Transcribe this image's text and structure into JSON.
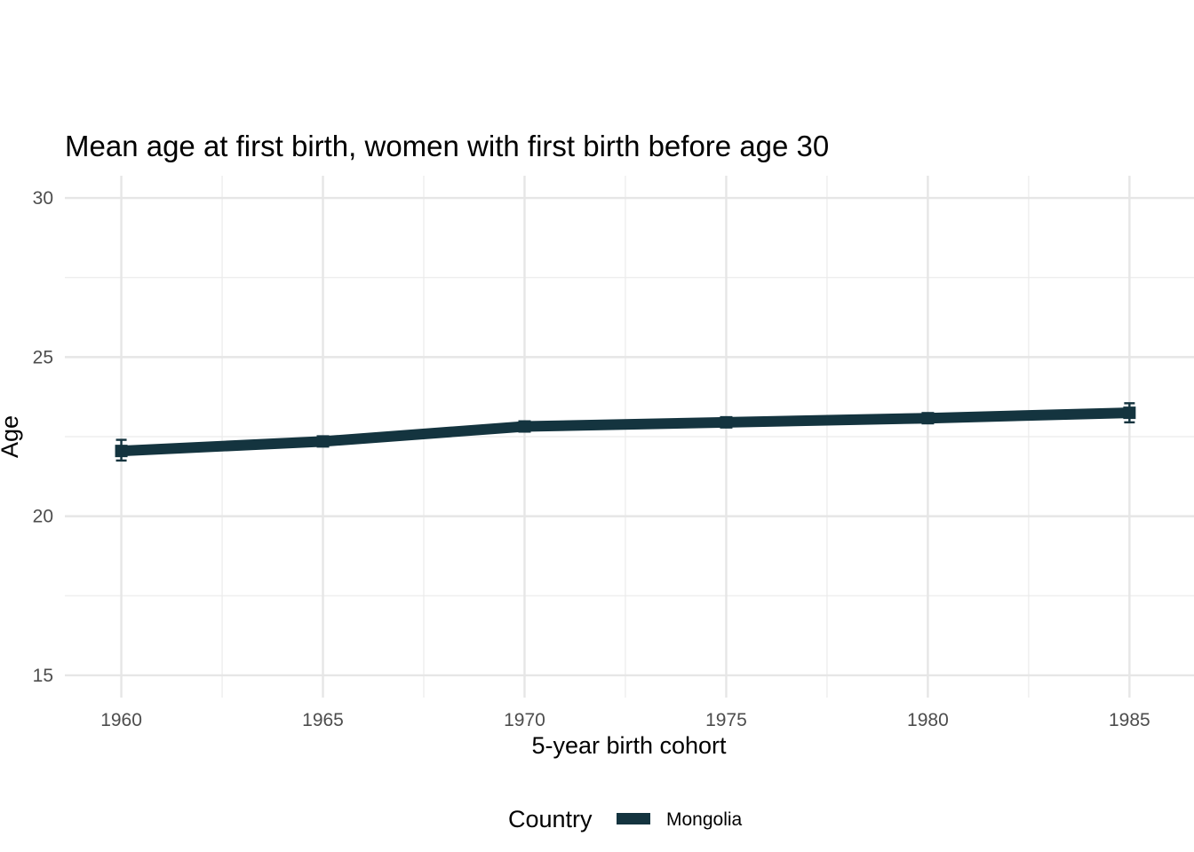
{
  "chart_data": {
    "type": "line",
    "title": "Mean age at first birth, women with first birth before age 30",
    "xlabel": "5-year birth cohort",
    "ylabel": "Age",
    "x": [
      1960,
      1965,
      1970,
      1975,
      1980,
      1985
    ],
    "x_tick_labels": [
      "1960",
      "1965",
      "1970",
      "1975",
      "1980",
      "1985"
    ],
    "y_ticks": [
      15,
      20,
      25,
      30
    ],
    "y_tick_labels": [
      "15",
      "20",
      "25",
      "30"
    ],
    "xlim": [
      1958.6,
      1986.6
    ],
    "ylim": [
      14.3,
      30.7
    ],
    "grid": true,
    "series": [
      {
        "name": "Mongolia",
        "color": "#14343f",
        "values": [
          22.05,
          22.35,
          22.82,
          22.95,
          23.08,
          23.25
        ],
        "error_low": [
          21.75,
          22.25,
          22.7,
          22.85,
          22.95,
          22.95
        ],
        "error_high": [
          22.4,
          22.45,
          22.95,
          23.05,
          23.2,
          23.55
        ]
      }
    ],
    "legend": {
      "title": "Country",
      "position": "bottom"
    }
  }
}
